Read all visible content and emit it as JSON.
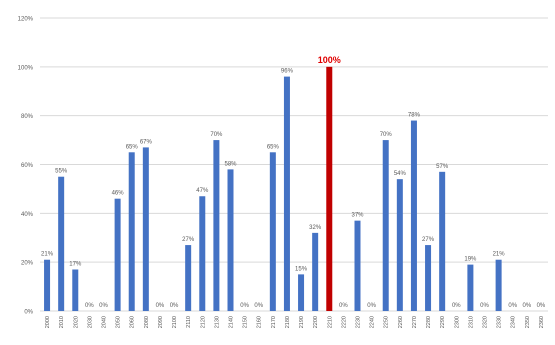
{
  "chart_data": {
    "type": "bar",
    "ylim": [
      0,
      120
    ],
    "y_ticks": [
      "0%",
      "20%",
      "40%",
      "60%",
      "80%",
      "100%",
      "120%"
    ],
    "y_tick_values": [
      0,
      20,
      40,
      60,
      80,
      100,
      120
    ],
    "grid": true,
    "categories": [
      "2000",
      "2010",
      "2020",
      "2030",
      "2040",
      "2050",
      "2060",
      "2080",
      "2090",
      "2100",
      "2110",
      "2120",
      "2130",
      "2140",
      "2150",
      "2160",
      "2170",
      "2180",
      "2190",
      "2200",
      "2210",
      "2220",
      "2230",
      "2240",
      "2250",
      "2260",
      "2270",
      "2280",
      "2290",
      "2300",
      "2310",
      "2320",
      "2330",
      "2340",
      "2350",
      "2360"
    ],
    "values": [
      21,
      55,
      17,
      0,
      0,
      46,
      65,
      67,
      0,
      0,
      27,
      47,
      70,
      58,
      0,
      0,
      65,
      96,
      15,
      32,
      100,
      0,
      37,
      0,
      70,
      54,
      78,
      27,
      57,
      0,
      19,
      0,
      21,
      0,
      0,
      0
    ],
    "labels": [
      "21%",
      "55%",
      "17%",
      "0%",
      "0%",
      "46%",
      "65%",
      "67%",
      "0%",
      "0%",
      "27%",
      "47%",
      "70%",
      "58%",
      "0%",
      "0%",
      "65%",
      "96%",
      "15%",
      "32%",
      "100%",
      "0%",
      "37%",
      "0%",
      "70%",
      "54%",
      "78%",
      "27%",
      "57%",
      "0%",
      "19%",
      "0%",
      "21%",
      "0%",
      "0%",
      "0%"
    ],
    "highlight_index": 20,
    "colors": {
      "bar": "#4472C4",
      "highlight": "#C00000",
      "grid": "#D9D9D9",
      "text": "#595959"
    }
  }
}
